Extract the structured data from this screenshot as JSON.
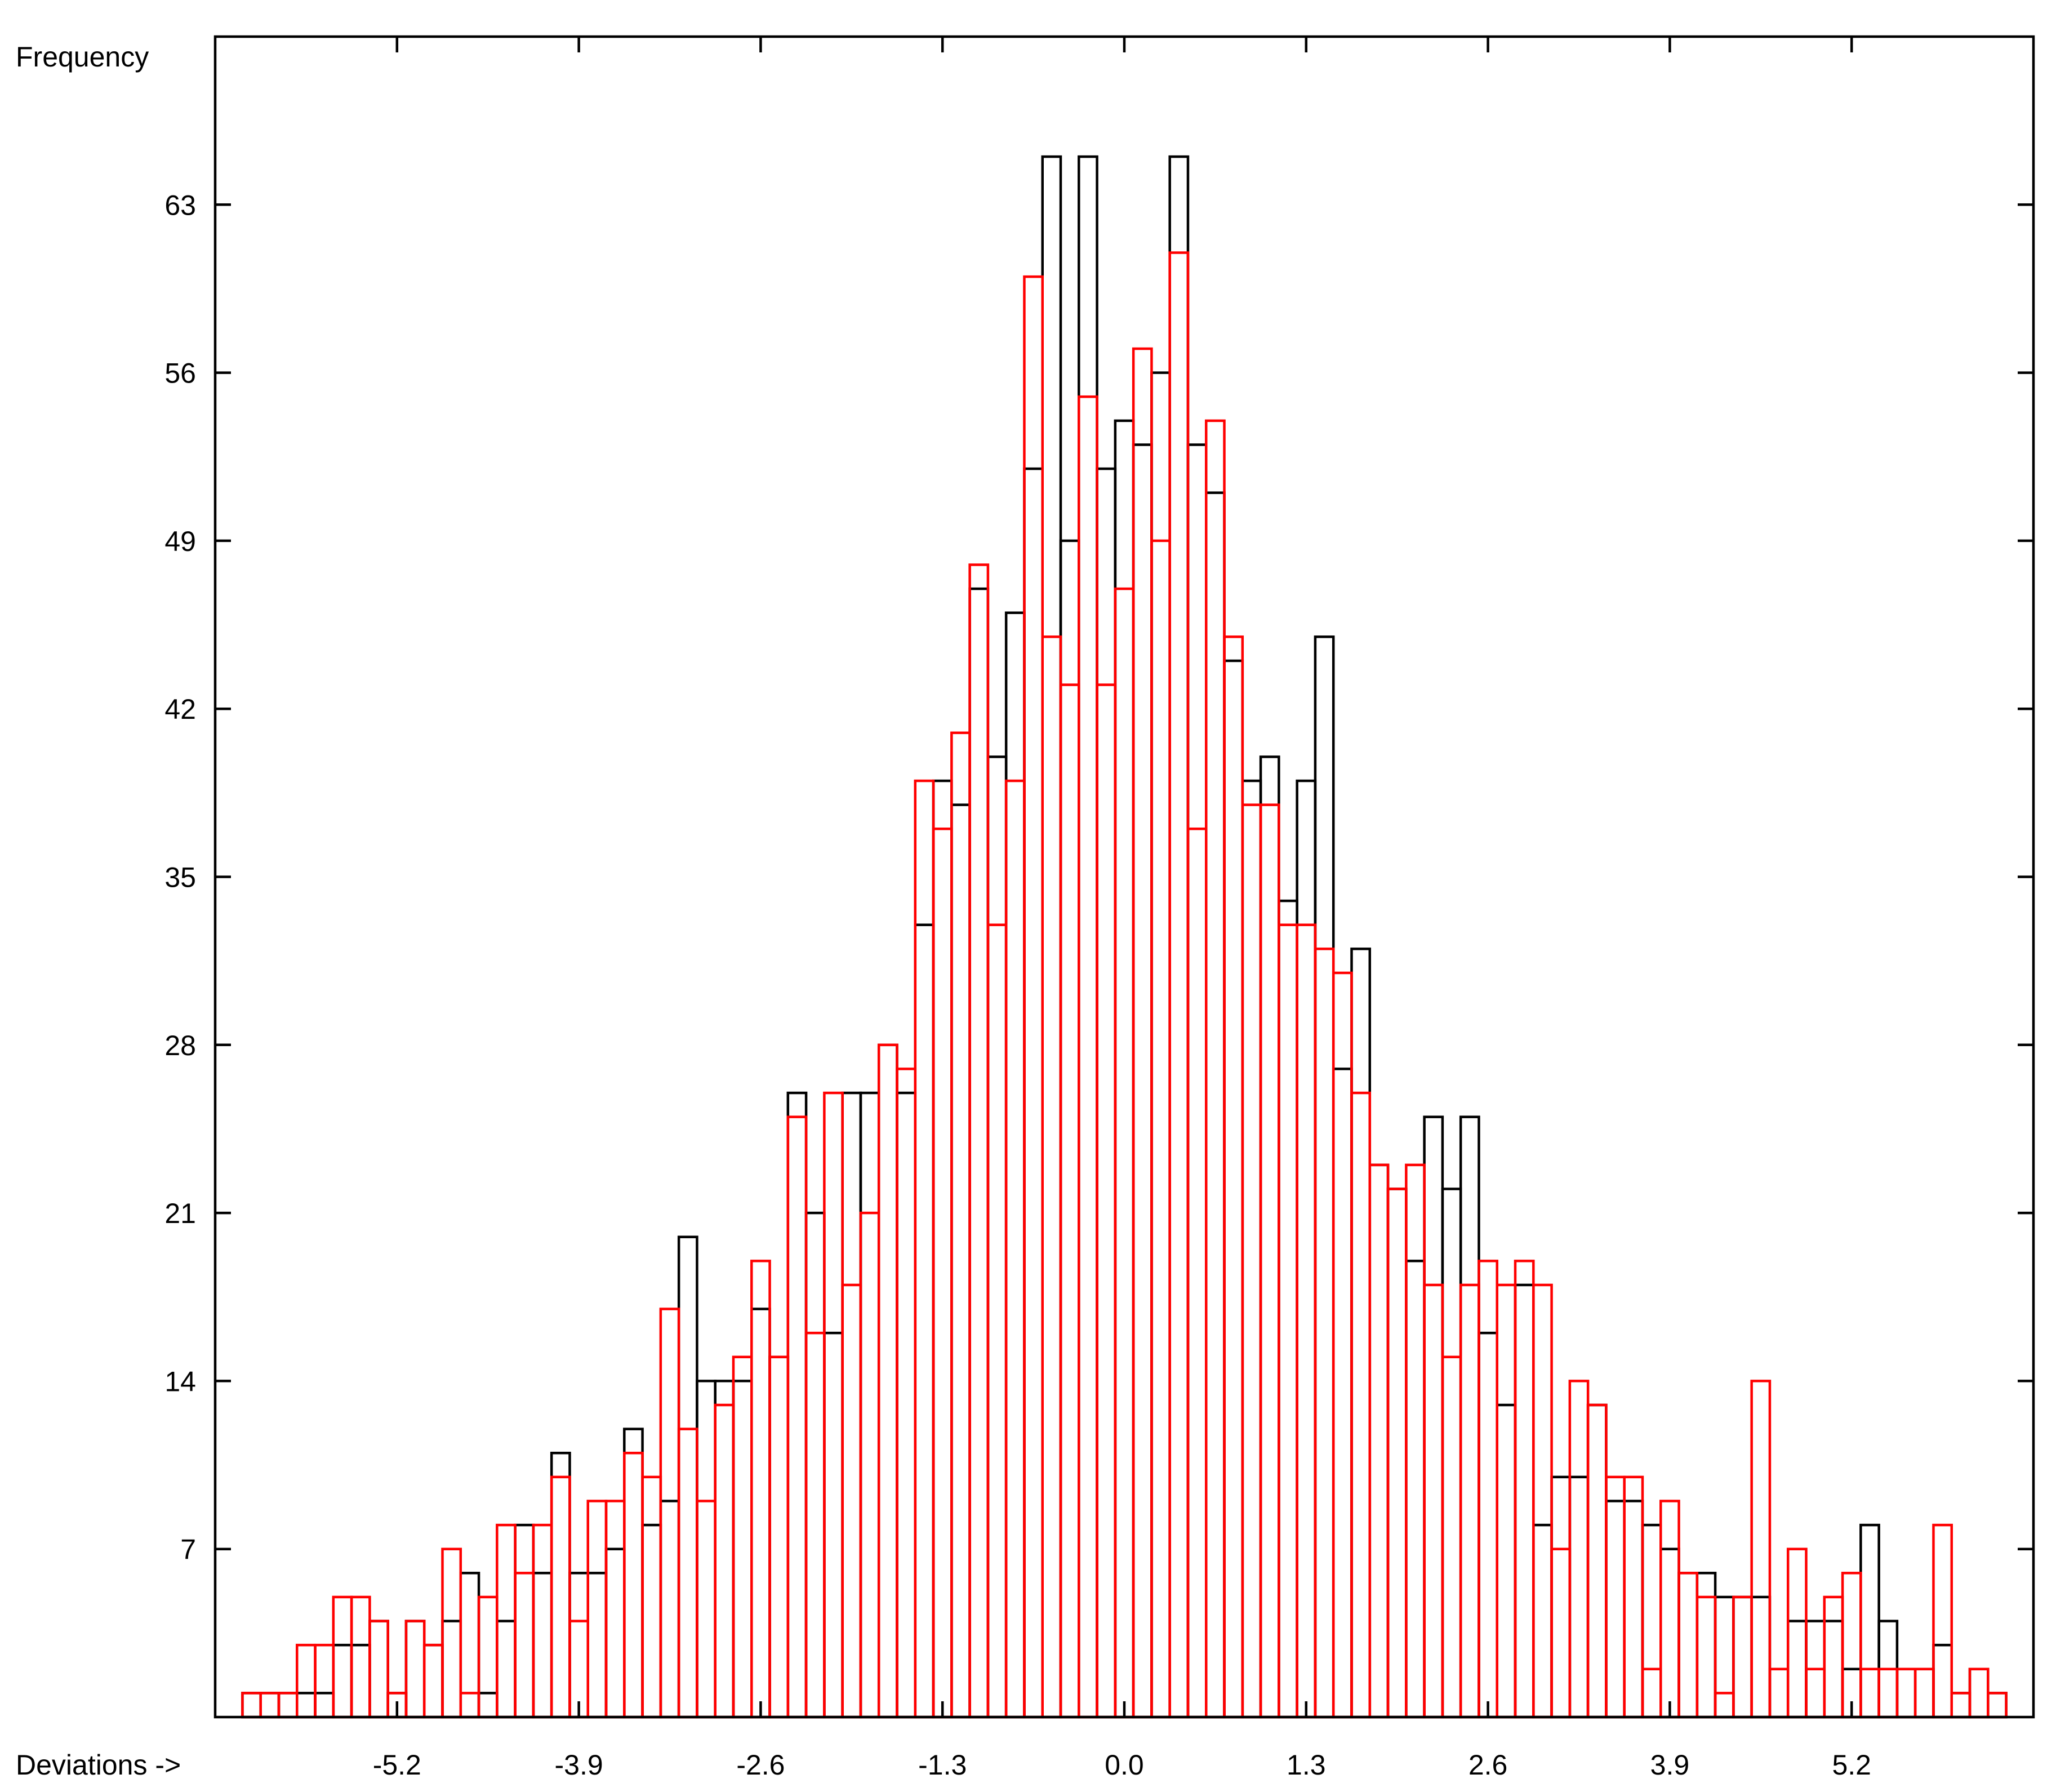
{
  "chart_data": {
    "type": "histogram",
    "x_label": "Deviations ->",
    "y_label": "Frequency",
    "bins": [
      -6.305,
      -6.175,
      -6.045,
      -5.915,
      -5.785,
      -5.655,
      -5.525,
      -5.395,
      -5.265,
      -5.135,
      -5.005,
      -4.875,
      -4.745,
      -4.615,
      -4.485,
      -4.355,
      -4.225,
      -4.095,
      -3.965,
      -3.835,
      -3.705,
      -3.575,
      -3.445,
      -3.315,
      -3.185,
      -3.055,
      -2.925,
      -2.795,
      -2.665,
      -2.535,
      -2.405,
      -2.275,
      -2.145,
      -2.015,
      -1.885,
      -1.755,
      -1.625,
      -1.495,
      -1.365,
      -1.235,
      -1.105,
      -0.975,
      -0.845,
      -0.715,
      -0.585,
      -0.455,
      -0.325,
      -0.195,
      -0.065,
      0.065,
      0.195,
      0.325,
      0.455,
      0.585,
      0.715,
      0.845,
      0.975,
      1.105,
      1.235,
      1.365,
      1.495,
      1.625,
      1.755,
      1.885,
      2.015,
      2.145,
      2.275,
      2.405,
      2.535,
      2.665,
      2.795,
      2.925,
      3.055,
      3.185,
      3.315,
      3.445,
      3.575,
      3.705,
      3.835,
      3.965,
      4.095,
      4.225,
      4.355,
      4.485,
      4.615,
      4.745,
      4.875,
      5.005,
      5.135,
      5.265,
      5.395,
      5.525,
      5.655,
      5.785,
      5.915,
      6.045,
      6.175,
      6.305
    ],
    "series": [
      {
        "color": "#000000",
        "values": [
          1,
          1,
          1,
          1,
          1,
          3,
          3,
          4,
          1,
          4,
          3,
          4,
          6,
          1,
          4,
          8,
          6,
          11,
          6,
          6,
          7,
          12,
          8,
          9,
          20,
          14,
          14,
          14,
          17,
          15,
          26,
          21,
          16,
          26,
          26,
          28,
          26,
          33,
          39,
          38,
          47,
          40,
          46,
          52,
          65,
          49,
          65,
          52,
          54,
          53,
          56,
          65,
          53,
          51,
          44,
          39,
          40,
          34,
          39,
          45,
          27,
          32,
          23,
          22,
          19,
          25,
          22,
          25,
          16,
          13,
          18,
          8,
          10,
          10,
          13,
          9,
          9,
          8,
          7,
          6,
          6,
          5,
          5,
          5,
          2,
          4,
          4,
          4,
          2,
          8,
          4,
          2,
          2,
          3,
          1,
          2,
          1
        ]
      },
      {
        "color": "#ff0000",
        "values": [
          1,
          1,
          1,
          3,
          3,
          5,
          5,
          4,
          1,
          4,
          3,
          7,
          1,
          5,
          8,
          6,
          8,
          10,
          4,
          9,
          9,
          11,
          10,
          17,
          12,
          9,
          13,
          15,
          19,
          15,
          25,
          16,
          26,
          18,
          21,
          28,
          27,
          39,
          37,
          41,
          48,
          33,
          39,
          60,
          45,
          43,
          55,
          43,
          47,
          57,
          49,
          61,
          37,
          54,
          45,
          38,
          38,
          33,
          33,
          32,
          31,
          26,
          23,
          22,
          23,
          18,
          15,
          18,
          19,
          18,
          19,
          18,
          7,
          14,
          13,
          10,
          10,
          2,
          9,
          6,
          5,
          1,
          5,
          14,
          2,
          7,
          2,
          5,
          6,
          2,
          2,
          2,
          2,
          8,
          1,
          2,
          1
        ]
      }
    ],
    "xlim": [
      -6.5,
      6.5
    ],
    "ylim": [
      0,
      70
    ],
    "xticks": [
      -5.2,
      -3.9,
      -2.6,
      -1.3,
      {
        "value": 0,
        "label": "0.0"
      },
      1.3,
      2.6,
      3.9,
      5.2
    ],
    "yticks": [
      7,
      14,
      21,
      28,
      35,
      42,
      49,
      56,
      63
    ]
  }
}
